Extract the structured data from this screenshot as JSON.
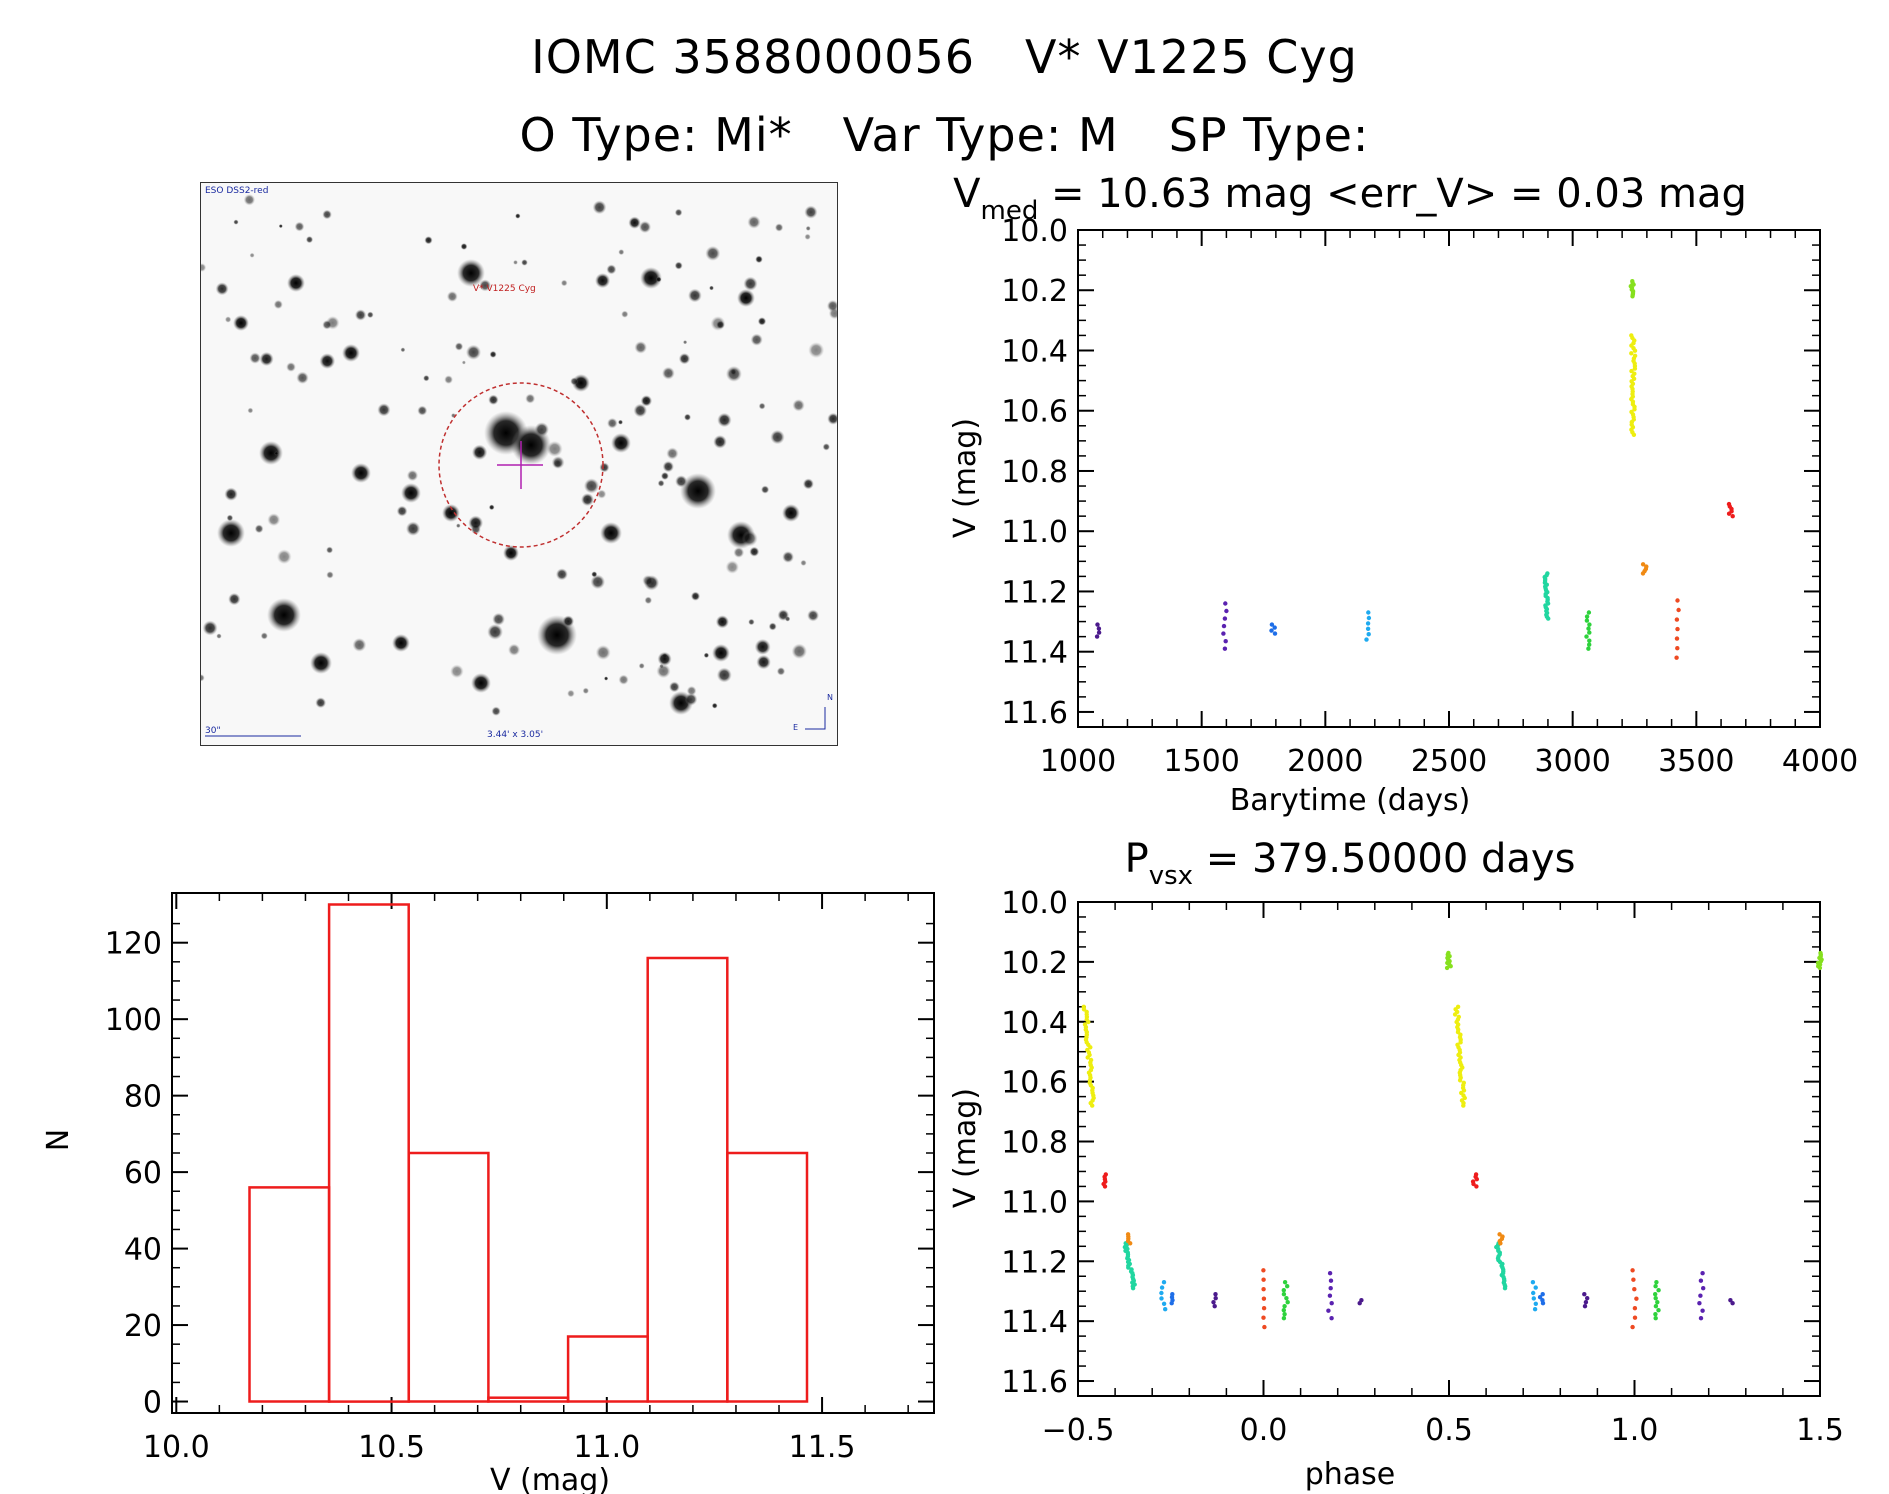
{
  "header": {
    "line1_id": "IOMC 3588000056",
    "line1_name": "V* V1225 Cyg",
    "line2_otype": "O Type: Mi*",
    "line2_vartype": "Var Type: M",
    "line2_sptype": "SP Type:"
  },
  "finder": {
    "survey_label": "ESO DSS2-red",
    "target_label": "V* V1225 Cyg",
    "scale_label": "30\"",
    "fov_label": "3.44' x 3.05'",
    "north_label": "N",
    "east_label": "E"
  },
  "colors": {
    "histogram": "#ee1c1c",
    "axis": "#000000",
    "finder_circle": "#c03030",
    "finder_text": "#c02020",
    "finder_blue": "#1a2aa0"
  },
  "chart_data": [
    {
      "name": "light-curve",
      "type": "scatter",
      "title_main": "V",
      "title_sub": "med",
      "title_rest": " = 10.63 mag <err_V> = 0.03 mag",
      "xlabel": "Barytime (days)",
      "ylabel": "V (mag)",
      "xlim": [
        1000,
        4000
      ],
      "ylim": [
        10.0,
        11.65
      ],
      "y_inverted": true,
      "x_ticks": [
        1000,
        1500,
        2000,
        2500,
        3000,
        3500,
        4000
      ],
      "y_ticks": [
        "10.0",
        "10.2",
        "10.4",
        "10.6",
        "10.8",
        "11.0",
        "11.2",
        "11.4",
        "11.6"
      ],
      "groups": [
        {
          "x": 1085,
          "y_min": 11.31,
          "y_max": 11.35,
          "n": 4,
          "color": "#4b1a8c"
        },
        {
          "x": 1595,
          "y_min": 11.24,
          "y_max": 11.39,
          "n": 7,
          "color": "#5a22b0"
        },
        {
          "x": 1790,
          "y_min": 11.31,
          "y_max": 11.34,
          "n": 4,
          "color": "#1e6ee8"
        },
        {
          "x": 2170,
          "y_min": 11.27,
          "y_max": 11.36,
          "n": 6,
          "color": "#1eaaf0"
        },
        {
          "x": 2895,
          "y_min": 11.14,
          "y_max": 11.29,
          "n": 25,
          "color": "#21d6a0"
        },
        {
          "x": 3060,
          "y_min": 11.27,
          "y_max": 11.39,
          "n": 10,
          "color": "#2ed23c"
        },
        {
          "x": 3240,
          "y_min": 10.17,
          "y_max": 10.22,
          "n": 10,
          "color": "#86e01e"
        },
        {
          "x": 3245,
          "y_min": 10.35,
          "y_max": 10.68,
          "n": 40,
          "color": "#eeee10"
        },
        {
          "x": 3290,
          "y_min": 11.11,
          "y_max": 11.14,
          "n": 5,
          "color": "#f08a14"
        },
        {
          "x": 3425,
          "y_min": 11.23,
          "y_max": 11.42,
          "n": 7,
          "color": "#ee4a22"
        },
        {
          "x": 3640,
          "y_min": 10.91,
          "y_max": 10.95,
          "n": 6,
          "color": "#ee1c1c"
        }
      ]
    },
    {
      "name": "histogram",
      "type": "bar",
      "xlabel": "V (mag)",
      "ylabel": "N",
      "xlim": [
        9.99,
        11.76
      ],
      "ylim": [
        -3,
        133
      ],
      "x_ticks": [
        "10.0",
        "10.5",
        "11.0",
        "11.5"
      ],
      "y_ticks": [
        0,
        20,
        40,
        60,
        80,
        100,
        120
      ],
      "bin_edges": [
        10.17,
        10.355,
        10.54,
        10.725,
        10.91,
        11.095,
        11.28,
        11.465
      ],
      "values": [
        56,
        130,
        65,
        1,
        17,
        116,
        65
      ]
    },
    {
      "name": "phased-curve",
      "type": "scatter",
      "title_main": "P",
      "title_sub": "vsx",
      "title_rest": " = 379.50000 days",
      "xlabel": "phase",
      "ylabel": "V (mag)",
      "xlim": [
        -0.5,
        1.5
      ],
      "ylim": [
        10.0,
        11.65
      ],
      "y_inverted": true,
      "x_ticks": [
        "−0.5",
        "0.0",
        "0.5",
        "1.0",
        "1.5"
      ],
      "y_ticks": [
        "10.0",
        "10.2",
        "10.4",
        "10.6",
        "10.8",
        "11.0",
        "11.2",
        "11.4",
        "11.6"
      ],
      "groups": [
        {
          "x": -0.48,
          "x2": -0.46,
          "y_min": 10.35,
          "y_max": 10.68,
          "n": 40,
          "color": "#eeee10"
        },
        {
          "x": -0.43,
          "y_min": 10.91,
          "y_max": 10.95,
          "n": 6,
          "color": "#ee1c1c"
        },
        {
          "x": -0.37,
          "x2": -0.35,
          "y_min": 11.14,
          "y_max": 11.29,
          "n": 25,
          "color": "#21d6a0"
        },
        {
          "x": -0.36,
          "y_min": 11.11,
          "y_max": 11.14,
          "n": 5,
          "color": "#f08a14"
        },
        {
          "x": -0.27,
          "y_min": 11.27,
          "y_max": 11.36,
          "n": 6,
          "color": "#1eaaf0"
        },
        {
          "x": -0.25,
          "y_min": 11.31,
          "y_max": 11.34,
          "n": 4,
          "color": "#1e6ee8"
        },
        {
          "x": -0.13,
          "y_min": 11.31,
          "y_max": 11.35,
          "n": 4,
          "color": "#4b1a8c"
        },
        {
          "x": 0.0,
          "y_min": 11.23,
          "y_max": 11.42,
          "n": 7,
          "color": "#ee4a22"
        },
        {
          "x": 0.06,
          "y_min": 11.27,
          "y_max": 11.39,
          "n": 10,
          "color": "#2ed23c"
        },
        {
          "x": 0.18,
          "y_min": 11.24,
          "y_max": 11.39,
          "n": 7,
          "color": "#5a22b0"
        },
        {
          "x": 0.26,
          "y_min": 11.33,
          "y_max": 11.34,
          "n": 2,
          "color": "#4b1a8c"
        },
        {
          "x": 0.5,
          "y_min": 10.17,
          "y_max": 10.22,
          "n": 10,
          "color": "#86e01e"
        },
        {
          "x": 0.52,
          "x2": 0.54,
          "y_min": 10.35,
          "y_max": 10.68,
          "n": 40,
          "color": "#eeee10"
        },
        {
          "x": 0.57,
          "y_min": 10.91,
          "y_max": 10.95,
          "n": 6,
          "color": "#ee1c1c"
        },
        {
          "x": 0.63,
          "x2": 0.65,
          "y_min": 11.14,
          "y_max": 11.29,
          "n": 25,
          "color": "#21d6a0"
        },
        {
          "x": 0.64,
          "y_min": 11.11,
          "y_max": 11.14,
          "n": 5,
          "color": "#f08a14"
        },
        {
          "x": 0.73,
          "y_min": 11.27,
          "y_max": 11.36,
          "n": 6,
          "color": "#1eaaf0"
        },
        {
          "x": 0.75,
          "y_min": 11.31,
          "y_max": 11.34,
          "n": 4,
          "color": "#1e6ee8"
        },
        {
          "x": 0.87,
          "y_min": 11.31,
          "y_max": 11.35,
          "n": 4,
          "color": "#4b1a8c"
        },
        {
          "x": 1.0,
          "y_min": 11.23,
          "y_max": 11.42,
          "n": 7,
          "color": "#ee4a22"
        },
        {
          "x": 1.06,
          "y_min": 11.27,
          "y_max": 11.39,
          "n": 10,
          "color": "#2ed23c"
        },
        {
          "x": 1.18,
          "y_min": 11.24,
          "y_max": 11.39,
          "n": 7,
          "color": "#5a22b0"
        },
        {
          "x": 1.26,
          "y_min": 11.33,
          "y_max": 11.34,
          "n": 2,
          "color": "#4b1a8c"
        },
        {
          "x": 1.5,
          "y_min": 10.17,
          "y_max": 10.22,
          "n": 10,
          "color": "#86e01e"
        }
      ]
    }
  ]
}
